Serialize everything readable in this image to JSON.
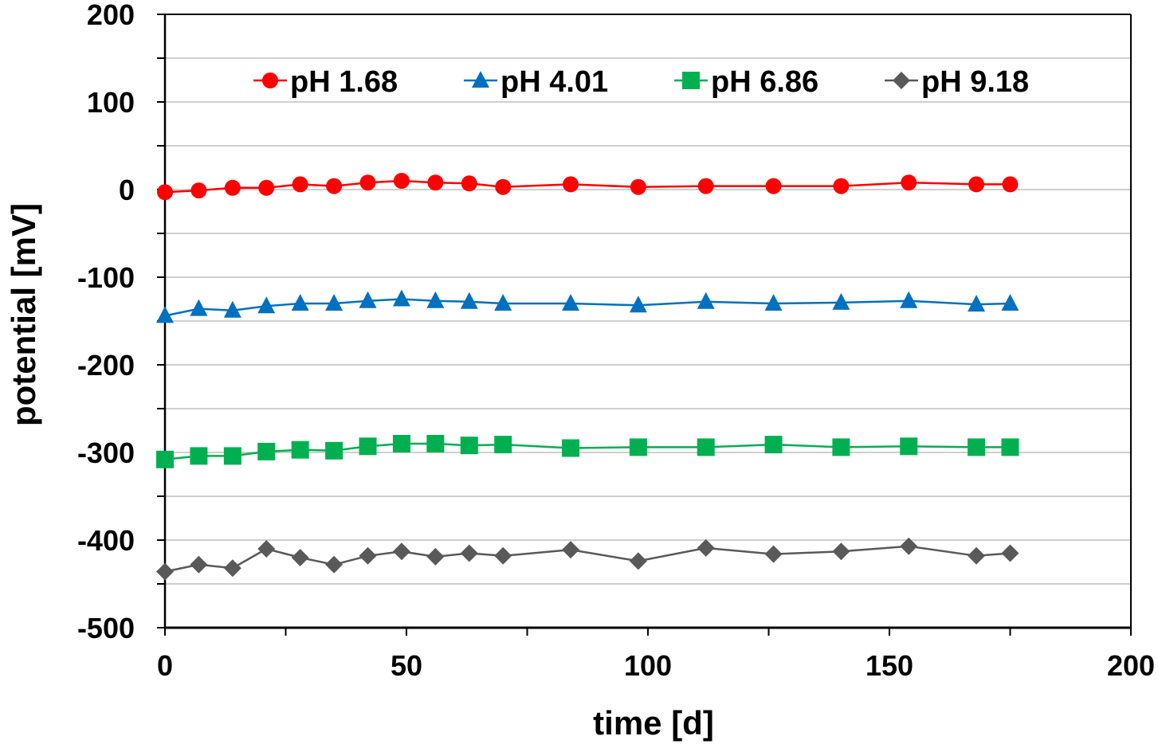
{
  "chart_data": {
    "type": "line",
    "title": "",
    "xlabel": "time [d]",
    "ylabel": "potential [mV]",
    "xlim": [
      0,
      200
    ],
    "ylim": [
      -500,
      200
    ],
    "x_ticks": [
      0,
      50,
      100,
      150,
      200
    ],
    "x_minor_step": 25,
    "y_ticks": [
      200,
      100,
      0,
      -100,
      -200,
      -300,
      -400,
      -500
    ],
    "y_minor_step": 50,
    "grid": "horizontal",
    "legend_position": "top-center",
    "x": [
      0,
      7,
      14,
      21,
      28,
      35,
      42,
      49,
      56,
      63,
      70,
      84,
      98,
      112,
      126,
      140,
      154,
      168,
      175
    ],
    "series": [
      {
        "name": "pH 1.68",
        "color": "#ff0000",
        "marker": "circle",
        "values": [
          -3,
          -1,
          2,
          2,
          6,
          4,
          8,
          10,
          8,
          7,
          3,
          6,
          3,
          4,
          4,
          4,
          8,
          6,
          6
        ]
      },
      {
        "name": "pH 4.01",
        "color": "#0070c0",
        "marker": "triangle",
        "values": [
          -144,
          -136,
          -138,
          -133,
          -130,
          -130,
          -127,
          -125,
          -127,
          -128,
          -130,
          -130,
          -132,
          -128,
          -130,
          -129,
          -127,
          -131,
          -130
        ]
      },
      {
        "name": "pH 6.86",
        "color": "#00b050",
        "marker": "square",
        "values": [
          -308,
          -304,
          -304,
          -299,
          -297,
          -298,
          -293,
          -290,
          -290,
          -292,
          -291,
          -295,
          -294,
          -294,
          -291,
          -294,
          -293,
          -294,
          -294
        ]
      },
      {
        "name": "pH 9.18",
        "color": "#595959",
        "marker": "diamond",
        "values": [
          -436,
          -428,
          -432,
          -410,
          -420,
          -428,
          -418,
          -413,
          -419,
          -415,
          -418,
          -411,
          -424,
          -409,
          -416,
          -413,
          -407,
          -418,
          -415
        ]
      }
    ]
  }
}
